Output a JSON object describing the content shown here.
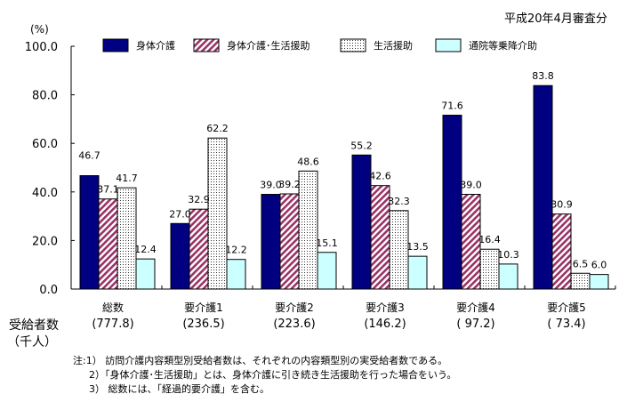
{
  "chart_data": {
    "type": "bar",
    "date_note": "平成20年4月審査分",
    "ylabel": "(%)",
    "ylim": [
      0,
      100
    ],
    "yticks": [
      "0.0",
      "20.0",
      "40.0",
      "60.0",
      "80.0",
      "100.0"
    ],
    "ytick_values": [
      0,
      20,
      40,
      60,
      80,
      100
    ],
    "categories": [
      "総数",
      "要介護1",
      "要介護2",
      "要介護3",
      "要介護4",
      "要介護5"
    ],
    "series": [
      {
        "name": "身体介護",
        "values": [
          46.7,
          27.0,
          39.0,
          55.2,
          71.6,
          83.8
        ],
        "labels": [
          "46.7",
          "27.0",
          "39.0",
          "55.2",
          "71.6",
          "83.8"
        ],
        "color": "#000080",
        "pattern": "solid"
      },
      {
        "name": "身体介護･生活援助",
        "values": [
          37.1,
          32.9,
          39.2,
          42.6,
          39.0,
          30.9
        ],
        "labels": [
          "37.1",
          "32.9",
          "39.2",
          "42.6",
          "39.0",
          "30.9"
        ],
        "color": "#993366",
        "pattern": "diagonal"
      },
      {
        "name": "生活援助",
        "values": [
          41.7,
          62.2,
          48.6,
          32.3,
          16.4,
          6.5
        ],
        "labels": [
          "41.7",
          "62.2",
          "48.6",
          "32.3",
          "16.4",
          "6.5"
        ],
        "color": "#ffffff",
        "pattern": "dots"
      },
      {
        "name": "通院等乗降介助",
        "values": [
          12.4,
          12.2,
          15.1,
          13.5,
          10.3,
          6.0
        ],
        "labels": [
          "12.4",
          "12.2",
          "15.1",
          "13.5",
          "10.3",
          "6.0"
        ],
        "color": "#ccffff",
        "pattern": "solid"
      }
    ],
    "legend_position": "top",
    "recipients_label_line1": "受給者数",
    "recipients_label_line2": "（千人）",
    "recipients": [
      "(777.8)",
      "(236.5)",
      "(223.6)",
      "(146.2)",
      "( 97.2)",
      "( 73.4)"
    ]
  },
  "notes": [
    "注:1） 訪問介護内容類型別受給者数は、それぞれの内容類型別の実受給者数である。",
    "2）「身体介護･生活援助」とは、身体介護に引き続き生活援助を行った場合をいう。",
    "3） 総数には、「経過的要介護」を含む。"
  ]
}
